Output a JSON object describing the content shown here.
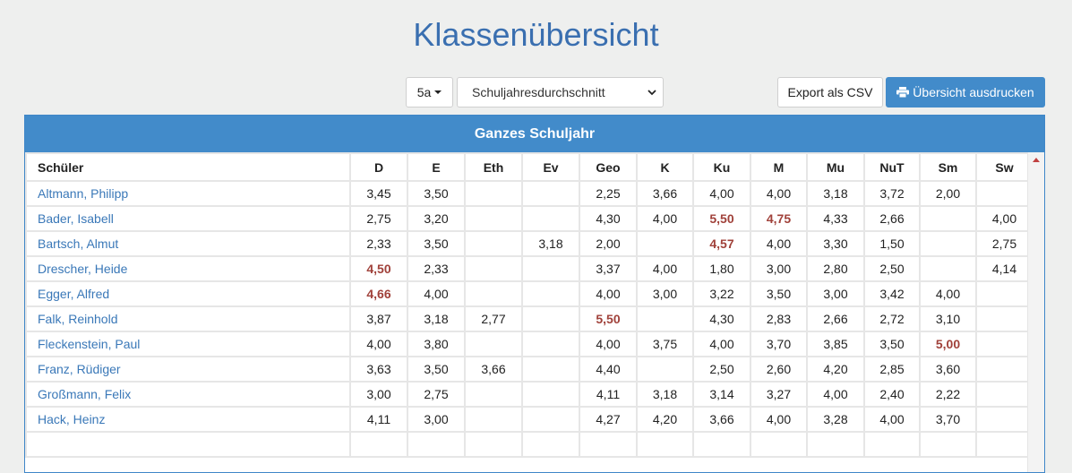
{
  "page": {
    "title": "Klassenübersicht"
  },
  "toolbar": {
    "class_label": "5a",
    "period_value": "Schuljahresdurchschnitt",
    "export_label": "Export als CSV",
    "print_label": "Übersicht ausdrucken"
  },
  "panel": {
    "title": "Ganzes Schuljahr"
  },
  "table": {
    "columns": [
      "Schüler",
      "D",
      "E",
      "Eth",
      "Ev",
      "Geo",
      "K",
      "Ku",
      "M",
      "Mu",
      "NuT",
      "Sm",
      "Sw"
    ],
    "rows": [
      {
        "name": "Altmann, Philipp",
        "grades": [
          "3,45",
          "3,50",
          "",
          "",
          "2,25",
          "3,66",
          "4,00",
          "4,00",
          "3,18",
          "3,72",
          "2,00",
          ""
        ]
      },
      {
        "name": "Bader, Isabell",
        "grades": [
          "2,75",
          "3,20",
          "",
          "",
          "4,30",
          "4,00",
          "5,50",
          "4,75",
          "4,33",
          "2,66",
          "",
          "4,00"
        ]
      },
      {
        "name": "Bartsch, Almut",
        "grades": [
          "2,33",
          "3,50",
          "",
          "3,18",
          "2,00",
          "",
          "4,57",
          "4,00",
          "3,30",
          "1,50",
          "",
          "2,75"
        ]
      },
      {
        "name": "Drescher, Heide",
        "grades": [
          "4,50",
          "2,33",
          "",
          "",
          "3,37",
          "4,00",
          "1,80",
          "3,00",
          "2,80",
          "2,50",
          "",
          "4,14"
        ]
      },
      {
        "name": "Egger, Alfred",
        "grades": [
          "4,66",
          "4,00",
          "",
          "",
          "4,00",
          "3,00",
          "3,22",
          "3,50",
          "3,00",
          "3,42",
          "4,00",
          ""
        ]
      },
      {
        "name": "Falk, Reinhold",
        "grades": [
          "3,87",
          "3,18",
          "2,77",
          "",
          "5,50",
          "",
          "4,30",
          "2,83",
          "2,66",
          "2,72",
          "3,10",
          ""
        ]
      },
      {
        "name": "Fleckenstein, Paul",
        "grades": [
          "4,00",
          "3,80",
          "",
          "",
          "4,00",
          "3,75",
          "4,00",
          "3,70",
          "3,85",
          "3,50",
          "5,00",
          ""
        ]
      },
      {
        "name": "Franz, Rüdiger",
        "grades": [
          "3,63",
          "3,50",
          "3,66",
          "",
          "4,40",
          "",
          "2,50",
          "2,60",
          "4,20",
          "2,85",
          "3,60",
          ""
        ]
      },
      {
        "name": "Großmann, Felix",
        "grades": [
          "3,00",
          "2,75",
          "",
          "",
          "4,11",
          "3,18",
          "3,14",
          "3,27",
          "4,00",
          "2,40",
          "2,22",
          ""
        ]
      },
      {
        "name": "Hack, Heinz",
        "grades": [
          "4,11",
          "3,00",
          "",
          "",
          "4,27",
          "4,20",
          "3,66",
          "4,00",
          "3,28",
          "4,00",
          "3,70",
          ""
        ]
      },
      {
        "name": "",
        "grades": [
          "",
          "",
          "",
          "",
          "",
          "",
          "",
          "",
          "",
          "",
          "",
          ""
        ]
      }
    ]
  }
}
